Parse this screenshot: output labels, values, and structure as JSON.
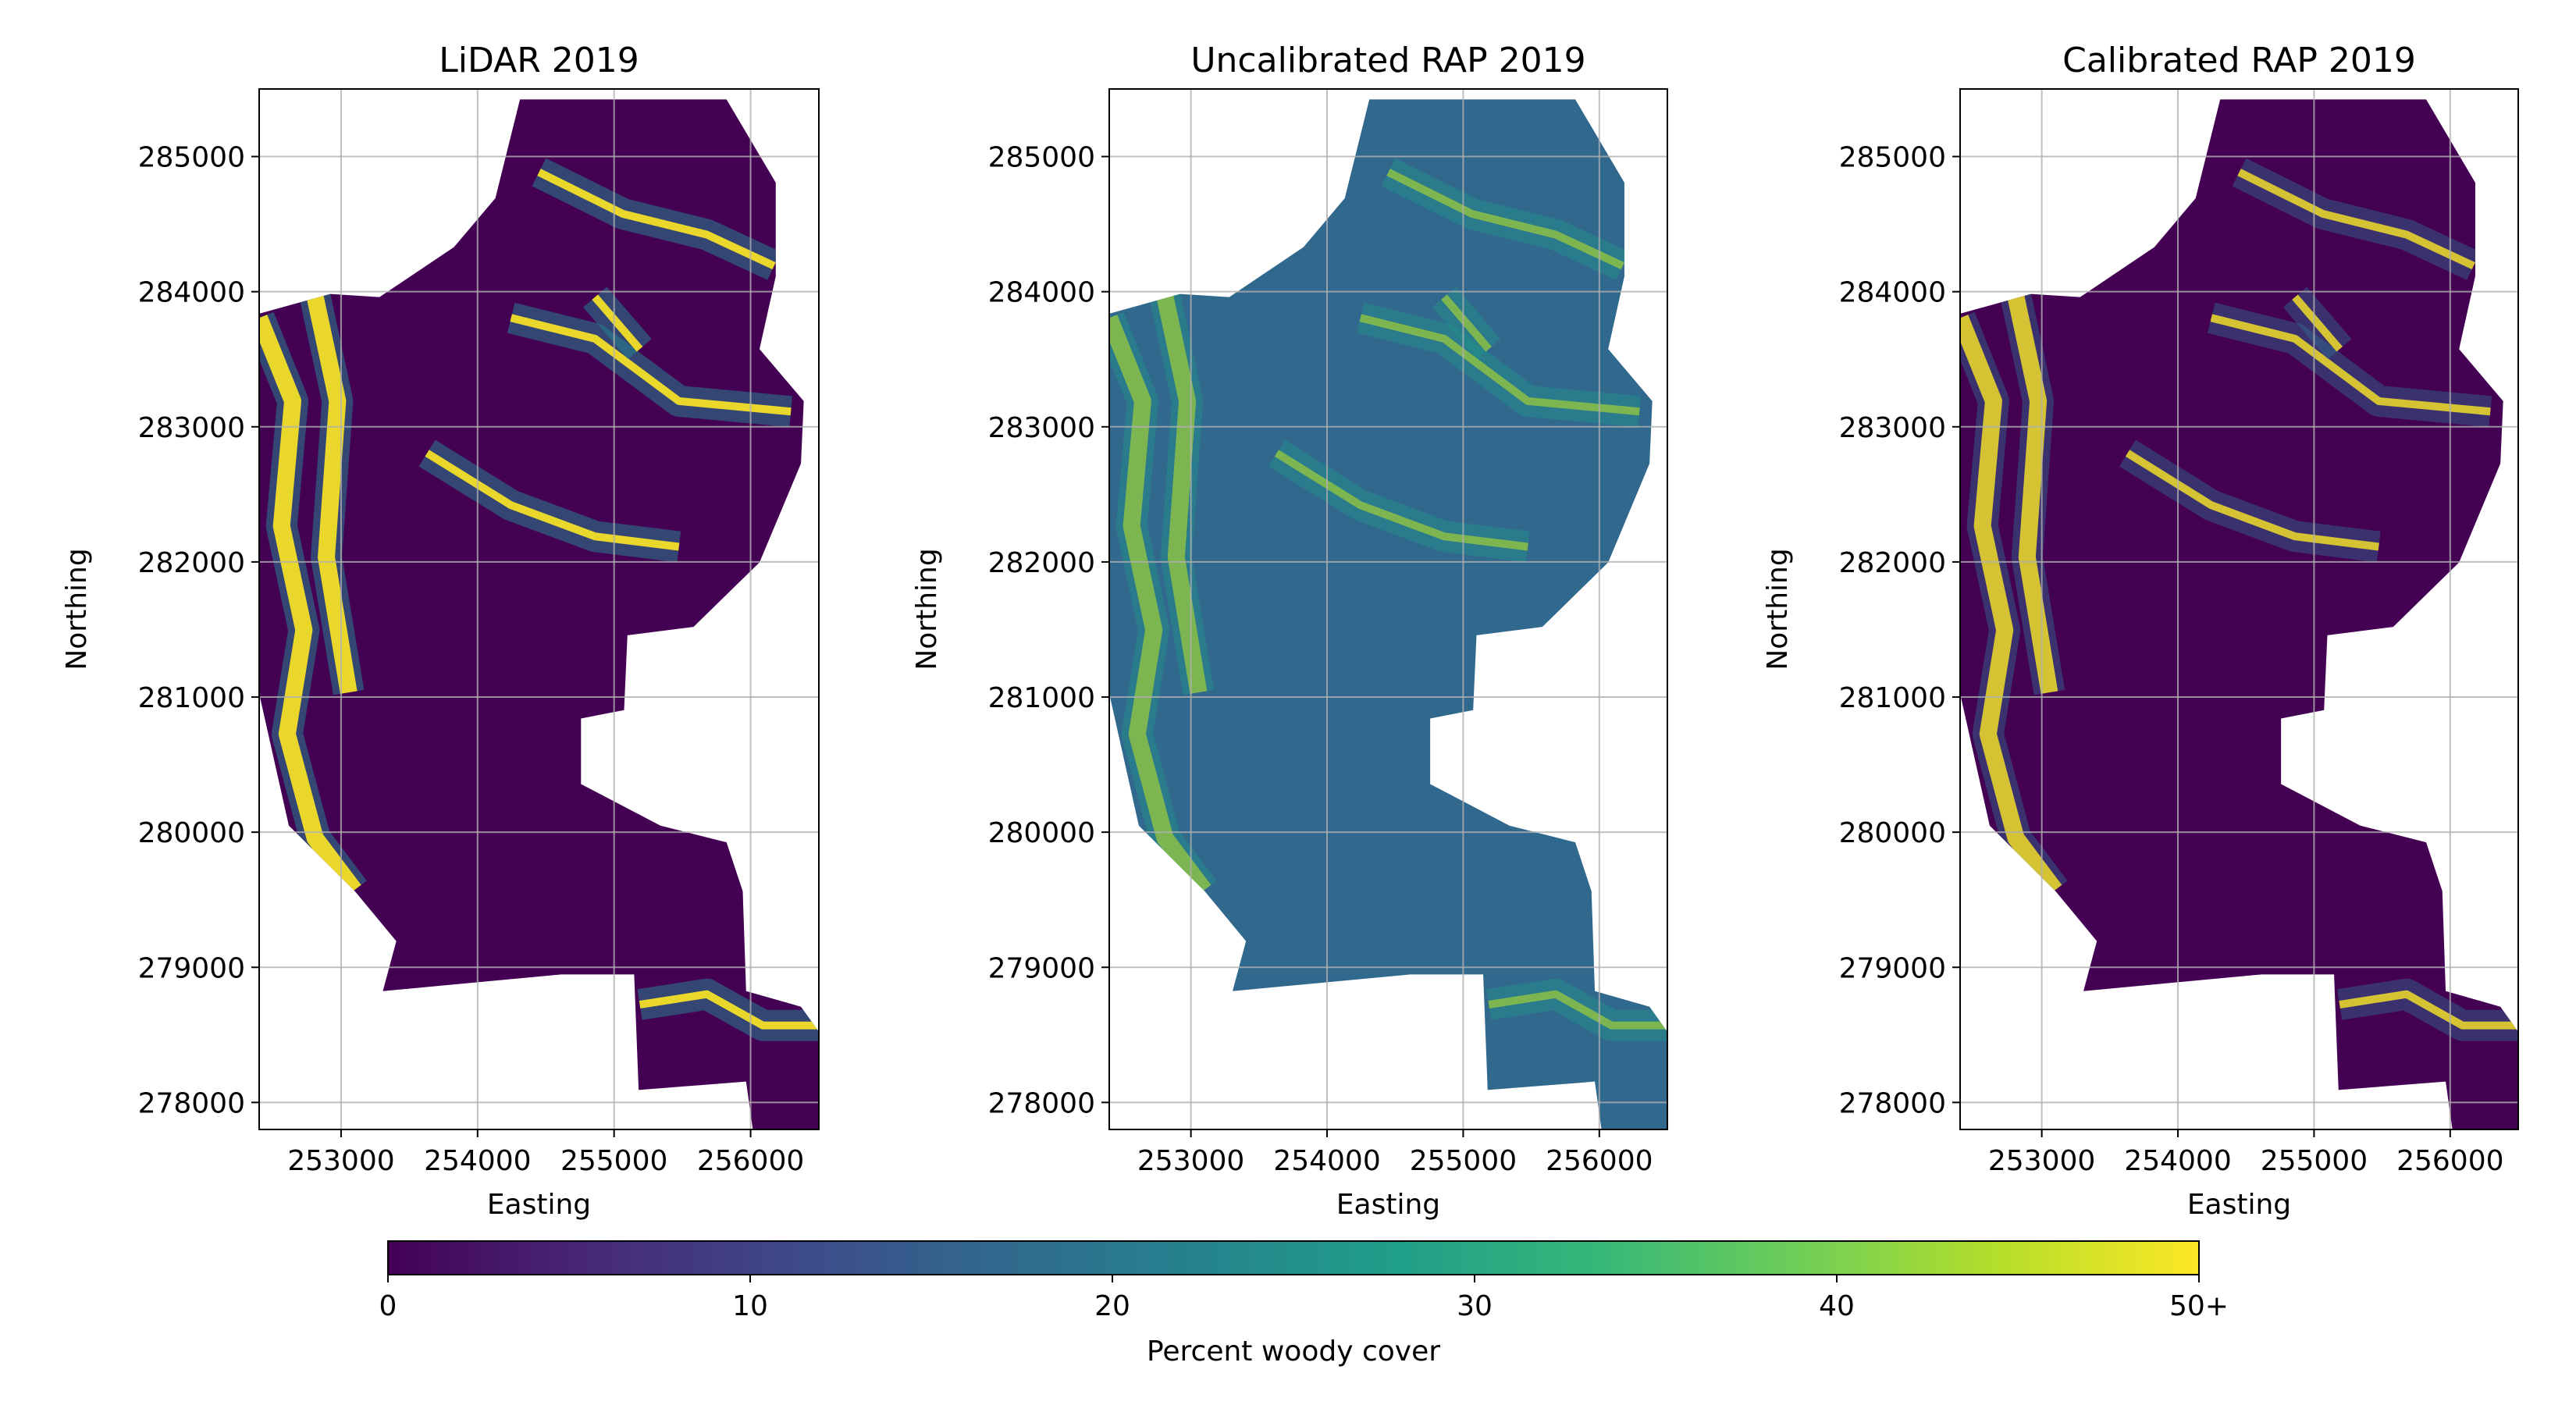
{
  "chart_data": [
    {
      "type": "image",
      "title": "LiDAR 2019",
      "xlabel": "Easting",
      "ylabel": "Northing",
      "xlim": [
        252400,
        256500
      ],
      "ylim": [
        277800,
        285500
      ],
      "xticks": [
        253000,
        254000,
        255000,
        256000
      ],
      "yticks": [
        278000,
        279000,
        280000,
        281000,
        282000,
        283000,
        284000,
        285000
      ],
      "grid": true
    },
    {
      "type": "image",
      "title": "Uncalibrated RAP 2019",
      "xlabel": "Easting",
      "ylabel": "Northing",
      "xlim": [
        252400,
        256500
      ],
      "ylim": [
        277800,
        285500
      ],
      "xticks": [
        253000,
        254000,
        255000,
        256000
      ],
      "yticks": [
        278000,
        279000,
        280000,
        281000,
        282000,
        283000,
        284000,
        285000
      ],
      "grid": true
    },
    {
      "type": "image",
      "title": "Calibrated RAP 2019",
      "xlabel": "Easting",
      "ylabel": "Northing",
      "xlim": [
        252400,
        256500
      ],
      "ylim": [
        277800,
        285500
      ],
      "xticks": [
        253000,
        254000,
        255000,
        256000
      ],
      "yticks": [
        278000,
        279000,
        280000,
        281000,
        282000,
        283000,
        284000,
        285000
      ],
      "grid": true
    }
  ],
  "colorbar": {
    "label": "Percent woody cover",
    "lim": [
      0,
      50
    ],
    "ticks": [
      0,
      10,
      20,
      30,
      40,
      {
        "value": 50,
        "label": "50+"
      }
    ],
    "colors": [
      "#440154",
      "#482878",
      "#3e4989",
      "#31688e",
      "#26828e",
      "#1f9e89",
      "#35b779",
      "#6ece58",
      "#b5de2b",
      "#fde725"
    ]
  }
}
